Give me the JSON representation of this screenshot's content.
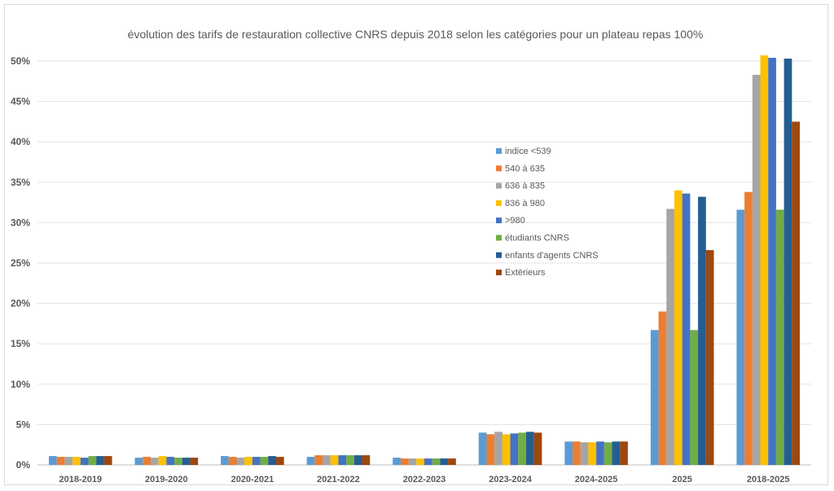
{
  "chart_data": {
    "type": "bar",
    "title": "évolution des tarifs de restauration collective CNRS depuis 2018 selon les catégories pour un plateau repas 100%",
    "xlabel": "",
    "ylabel": "",
    "ylim": [
      0,
      50
    ],
    "yticks": [
      "0%",
      "5%",
      "10%",
      "15%",
      "20%",
      "25%",
      "30%",
      "35%",
      "40%",
      "45%",
      "50%"
    ],
    "grid": true,
    "legend_position": "center-right",
    "categories": [
      "2018-2019",
      "2019-2020",
      "2020-2021",
      "2021-2022",
      "2022-2023",
      "2023-2024",
      "2024-2025",
      "2025",
      "2018-2025"
    ],
    "series": [
      {
        "name": "indice <539",
        "color": "#5b9bd5",
        "values": [
          1.1,
          0.9,
          1.1,
          1.0,
          0.9,
          4.0,
          2.9,
          16.7,
          31.6
        ]
      },
      {
        "name": "540 à 635",
        "color": "#ed7d31",
        "values": [
          1.0,
          1.0,
          1.0,
          1.2,
          0.8,
          3.8,
          2.9,
          19.0,
          33.8
        ]
      },
      {
        "name": "636 à 835",
        "color": "#a5a5a5",
        "values": [
          1.0,
          0.9,
          0.9,
          1.2,
          0.8,
          4.1,
          2.8,
          31.7,
          48.3
        ]
      },
      {
        "name": "836 à 980",
        "color": "#ffc000",
        "values": [
          1.0,
          1.1,
          1.0,
          1.2,
          0.8,
          3.8,
          2.8,
          34.0,
          50.7
        ]
      },
      {
        "name": ">980",
        "color": "#4472c4",
        "values": [
          0.9,
          1.0,
          1.0,
          1.2,
          0.8,
          3.9,
          2.9,
          33.6,
          50.4
        ]
      },
      {
        "name": "étudiants CNRS",
        "color": "#70ad47",
        "values": [
          1.1,
          0.9,
          1.0,
          1.2,
          0.8,
          4.0,
          2.8,
          16.7,
          31.6
        ]
      },
      {
        "name": "enfants d'agents CNRS",
        "color": "#255e91",
        "values": [
          1.1,
          0.9,
          1.1,
          1.2,
          0.8,
          4.1,
          2.9,
          33.2,
          50.3
        ]
      },
      {
        "name": "Extèrieurs",
        "color": "#9e480e",
        "values": [
          1.1,
          0.9,
          1.0,
          1.2,
          0.8,
          4.0,
          2.9,
          26.6,
          42.5
        ]
      }
    ]
  }
}
